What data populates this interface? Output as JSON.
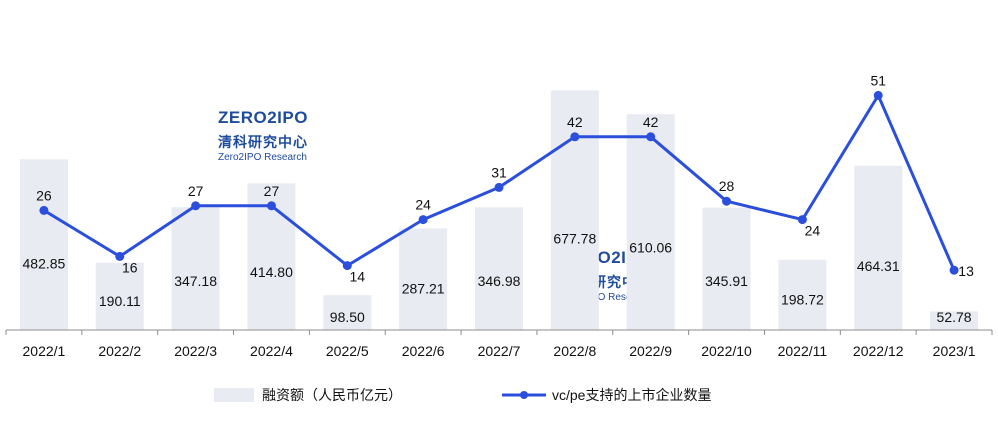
{
  "chart_data": {
    "type": "bar",
    "categories": [
      "2022/1",
      "2022/2",
      "2022/3",
      "2022/4",
      "2022/5",
      "2022/6",
      "2022/7",
      "2022/8",
      "2022/9",
      "2022/10",
      "2022/11",
      "2022/12",
      "2023/1"
    ],
    "series": [
      {
        "name": "融资额（人民币亿元）",
        "type": "bar",
        "values": [
          482.85,
          190.11,
          347.18,
          414.8,
          98.5,
          287.21,
          346.98,
          677.78,
          610.06,
          345.91,
          198.72,
          464.31,
          52.78
        ],
        "labels": [
          "482.85",
          "190.11",
          "347.18",
          "414.80",
          "98.50",
          "287.21",
          "346.98",
          "677.78",
          "610.06",
          "345.91",
          "198.72",
          "464.31",
          "52.78"
        ],
        "color": "#e8ebf1",
        "ylim": [
          0,
          690
        ]
      },
      {
        "name": "vc/pe支持的上市企业数量",
        "type": "line",
        "values": [
          26,
          16,
          27,
          27,
          14,
          24,
          31,
          42,
          42,
          28,
          24,
          51,
          13
        ],
        "labels": [
          "26",
          "16",
          "27",
          "27",
          "14",
          "24",
          "31",
          "42",
          "42",
          "28",
          "24",
          "51",
          "13"
        ],
        "color": "#2b4fdc",
        "ylim": [
          0,
          60
        ]
      }
    ],
    "legend_position": "bottom",
    "grid": false
  },
  "watermarks": [
    {
      "logo_text": "ZERO2IPO",
      "cn": "清科研究中心",
      "en": "Zero2IPO Research"
    },
    {
      "logo_text": "ZERO2IPO",
      "cn": "清科研究中心",
      "en": "Zero2IPO Research"
    }
  ]
}
